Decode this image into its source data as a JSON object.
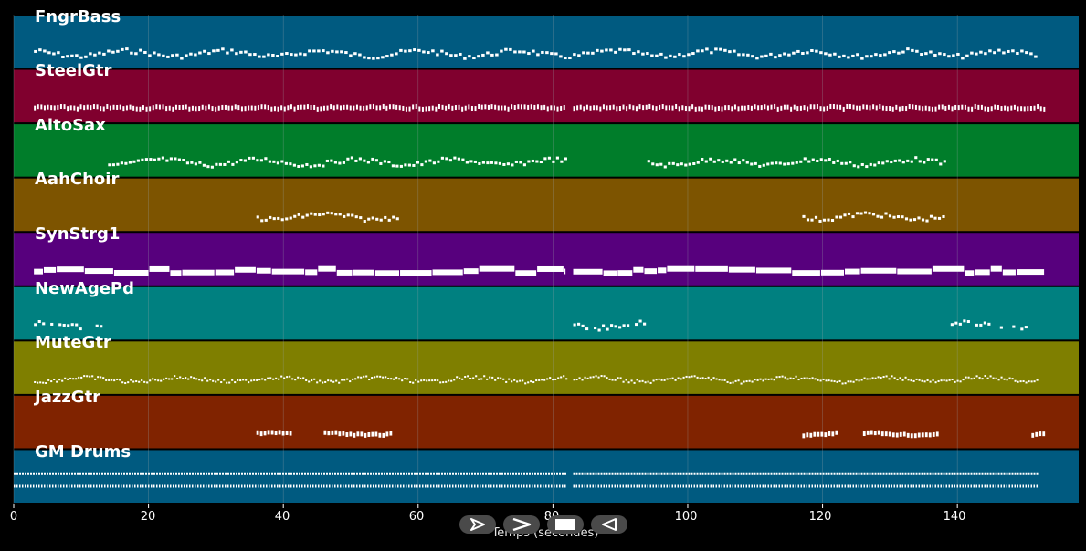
{
  "colors": {
    "background": "#000000",
    "note": "#ffffff",
    "grid": "#9aa3a8",
    "control": "#4a4a4a"
  },
  "tracks": [
    {
      "name": "FngrBass",
      "color": "#005a80",
      "style": "bass",
      "segments": [
        [
          3,
          152
        ]
      ]
    },
    {
      "name": "SteelGtr",
      "color": "#80002e",
      "style": "dense",
      "segments": [
        [
          3,
          82
        ],
        [
          83,
          153
        ]
      ]
    },
    {
      "name": "AltoSax",
      "color": "#007d2a",
      "style": "melody",
      "segments": [
        [
          14,
          82
        ],
        [
          94,
          138
        ]
      ]
    },
    {
      "name": "AahChoir",
      "color": "#7d5400",
      "style": "melody",
      "segments": [
        [
          36,
          57
        ],
        [
          117,
          138
        ]
      ]
    },
    {
      "name": "SynStrg1",
      "color": "#57007d",
      "style": "pad",
      "segments": [
        [
          3,
          82
        ],
        [
          83,
          153
        ]
      ]
    },
    {
      "name": "NewAgePd",
      "color": "#008080",
      "style": "sparse",
      "segments": [
        [
          3,
          13
        ],
        [
          83,
          94
        ],
        [
          139,
          150
        ]
      ]
    },
    {
      "name": "MuteGtr",
      "color": "#7f7f00",
      "style": "scatter",
      "segments": [
        [
          3,
          82
        ],
        [
          83,
          152
        ]
      ]
    },
    {
      "name": "JazzGtr",
      "color": "#802300",
      "style": "lead",
      "segments": [
        [
          36,
          41
        ],
        [
          46,
          56
        ],
        [
          117,
          122
        ],
        [
          126,
          137
        ],
        [
          151,
          153
        ]
      ]
    },
    {
      "name": "GM Drums",
      "color": "#005a80",
      "style": "drums",
      "segments": [
        [
          0,
          82
        ],
        [
          83,
          152
        ]
      ]
    }
  ],
  "x_axis": {
    "ticks": [
      0,
      20,
      40,
      60,
      80,
      100,
      120,
      140
    ],
    "max": 158,
    "label": "Temps (secondes)"
  },
  "controls": [
    {
      "name": "play-button",
      "icon": "play-icon"
    },
    {
      "name": "next-button",
      "icon": "next-icon"
    },
    {
      "name": "stop-button",
      "icon": "stop-icon"
    },
    {
      "name": "back-button",
      "icon": "back-icon"
    }
  ]
}
